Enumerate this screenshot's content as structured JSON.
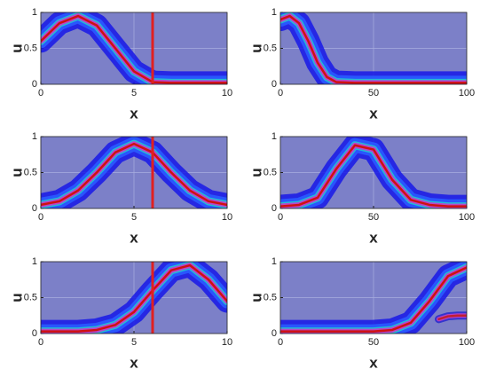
{
  "chart_data": [
    {
      "type": "line",
      "xlabel": "x",
      "ylabel": "u",
      "xlim": [
        0,
        10
      ],
      "ylim": [
        0,
        1
      ],
      "xticks": [
        0,
        5,
        10
      ],
      "yticks": [
        0,
        0.5,
        1
      ],
      "grid": true,
      "background": "#7c80c8",
      "marker_x": 6,
      "marker_color": "#e02020",
      "x": [
        0,
        1,
        2,
        3,
        4,
        5,
        6,
        7,
        8,
        9,
        10
      ],
      "series": [
        {
          "color": "#d01010",
          "values": [
            0.6,
            0.85,
            0.95,
            0.82,
            0.5,
            0.18,
            0.03,
            0.02,
            0.02,
            0.02,
            0.02
          ]
        }
      ]
    },
    {
      "type": "line",
      "xlabel": "x",
      "ylabel": "u",
      "xlim": [
        0,
        100
      ],
      "ylim": [
        0,
        1
      ],
      "xticks": [
        0,
        50,
        100
      ],
      "yticks": [
        0,
        0.5,
        1
      ],
      "grid": true,
      "background": "#7c80c8",
      "x": [
        0,
        5,
        10,
        15,
        20,
        25,
        30,
        40,
        50,
        60,
        70,
        80,
        90,
        100
      ],
      "series": [
        {
          "color": "#d01010",
          "values": [
            0.9,
            0.95,
            0.85,
            0.6,
            0.3,
            0.1,
            0.03,
            0.02,
            0.02,
            0.02,
            0.02,
            0.02,
            0.02,
            0.02
          ]
        }
      ]
    },
    {
      "type": "line",
      "xlabel": "x",
      "ylabel": "u",
      "xlim": [
        0,
        10
      ],
      "ylim": [
        0,
        1
      ],
      "xticks": [
        0,
        5,
        10
      ],
      "yticks": [
        0,
        0.5,
        1
      ],
      "grid": true,
      "background": "#7c80c8",
      "marker_x": 6,
      "marker_color": "#e02020",
      "x": [
        0,
        1,
        2,
        3,
        4,
        5,
        6,
        7,
        8,
        9,
        10
      ],
      "series": [
        {
          "color": "#d01010",
          "values": [
            0.05,
            0.1,
            0.25,
            0.5,
            0.78,
            0.9,
            0.78,
            0.5,
            0.25,
            0.1,
            0.05
          ]
        }
      ]
    },
    {
      "type": "line",
      "xlabel": "x",
      "ylabel": "u",
      "xlim": [
        0,
        100
      ],
      "ylim": [
        0,
        1
      ],
      "xticks": [
        0,
        50,
        100
      ],
      "yticks": [
        0,
        0.5,
        1
      ],
      "grid": true,
      "background": "#7c80c8",
      "x": [
        0,
        10,
        20,
        30,
        40,
        50,
        60,
        70,
        80,
        90,
        100
      ],
      "series": [
        {
          "color": "#d01010",
          "values": [
            0.03,
            0.05,
            0.15,
            0.55,
            0.88,
            0.82,
            0.4,
            0.12,
            0.05,
            0.03,
            0.03
          ]
        }
      ]
    },
    {
      "type": "line",
      "xlabel": "x",
      "ylabel": "u",
      "xlim": [
        0,
        10
      ],
      "ylim": [
        0,
        1
      ],
      "xticks": [
        0,
        5,
        10
      ],
      "yticks": [
        0,
        0.5,
        1
      ],
      "grid": true,
      "background": "#7c80c8",
      "marker_x": 6,
      "marker_color": "#e02020",
      "x": [
        0,
        1,
        2,
        3,
        4,
        5,
        6,
        7,
        8,
        9,
        10
      ],
      "series": [
        {
          "color": "#d01010",
          "values": [
            0.03,
            0.03,
            0.03,
            0.05,
            0.12,
            0.3,
            0.6,
            0.88,
            0.95,
            0.75,
            0.45
          ]
        }
      ]
    },
    {
      "type": "line",
      "xlabel": "x",
      "ylabel": "u",
      "xlim": [
        0,
        100
      ],
      "ylim": [
        0,
        1
      ],
      "xticks": [
        0,
        50,
        100
      ],
      "yticks": [
        0,
        0.5,
        1
      ],
      "grid": true,
      "background": "#7c80c8",
      "x": [
        0,
        10,
        20,
        30,
        40,
        50,
        60,
        70,
        80,
        90,
        100
      ],
      "series": [
        {
          "color": "#d01010",
          "values": [
            0.03,
            0.03,
            0.03,
            0.03,
            0.03,
            0.03,
            0.05,
            0.15,
            0.45,
            0.8,
            0.92
          ]
        },
        {
          "color": "#c02030",
          "x": [
            85,
            90,
            95,
            100
          ],
          "values": [
            0.2,
            0.24,
            0.25,
            0.25
          ]
        }
      ]
    }
  ]
}
